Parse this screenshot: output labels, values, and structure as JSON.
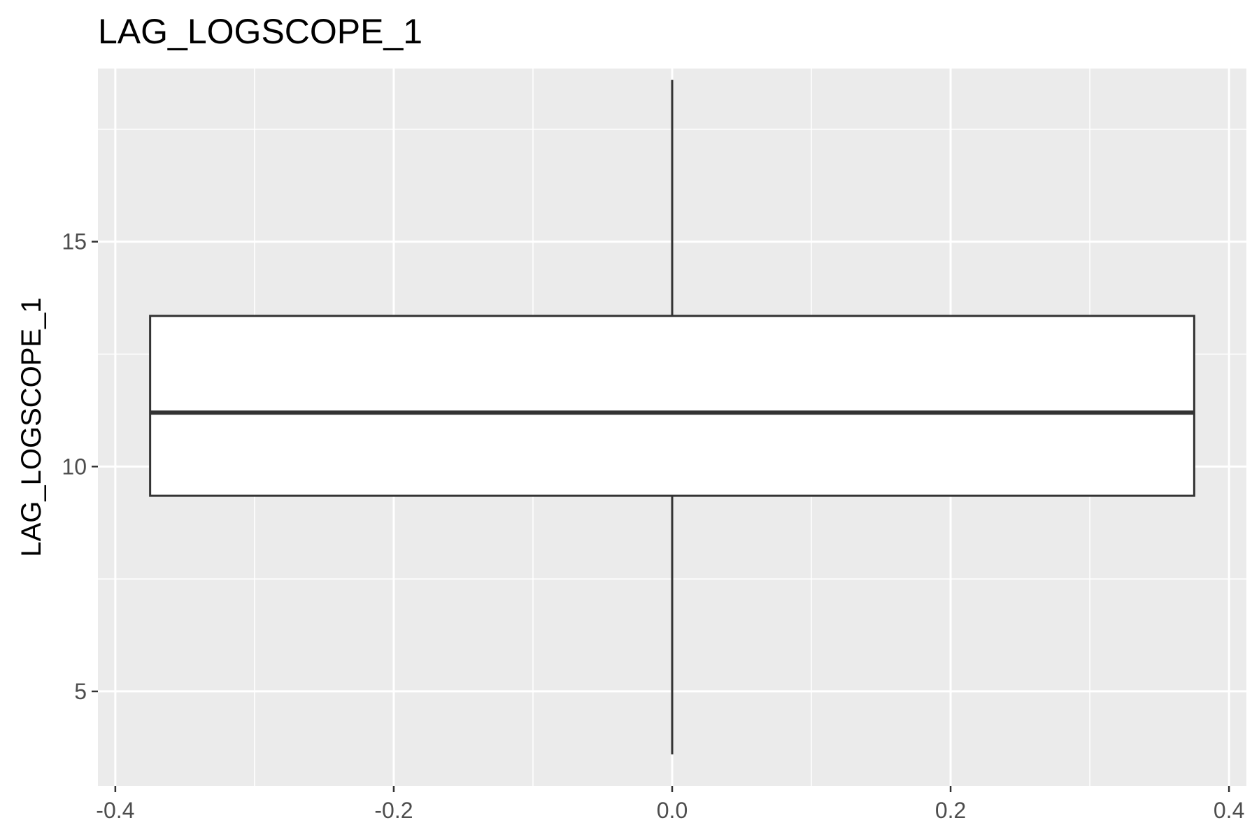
{
  "chart_data": {
    "type": "boxplot",
    "title": "LAG_LOGSCOPE_1",
    "xlabel": "",
    "ylabel": "LAG_LOGSCOPE_1",
    "xlim": [
      -0.4125,
      0.4125
    ],
    "ylim": [
      2.9,
      18.85
    ],
    "x_ticks": [
      -0.4,
      -0.2,
      0.0,
      0.2,
      0.4
    ],
    "x_tick_labels": [
      "-0.4",
      "-0.2",
      "0.0",
      "0.2",
      "0.4"
    ],
    "y_ticks": [
      5,
      10,
      15
    ],
    "y_tick_labels": [
      "5",
      "10",
      "15"
    ],
    "grid": true,
    "box": {
      "x_center": 0.0,
      "x_min": -0.375,
      "x_max": 0.375,
      "whisker_low": 3.6,
      "q1": 9.35,
      "median": 11.2,
      "q3": 13.35,
      "whisker_high": 18.6
    },
    "colors": {
      "panel_background": "#ebebeb",
      "grid_major": "#ffffff",
      "box_fill": "#ffffff",
      "box_stroke": "#333333",
      "tick_text": "#4d4d4d",
      "tick_mark": "#333333"
    }
  }
}
